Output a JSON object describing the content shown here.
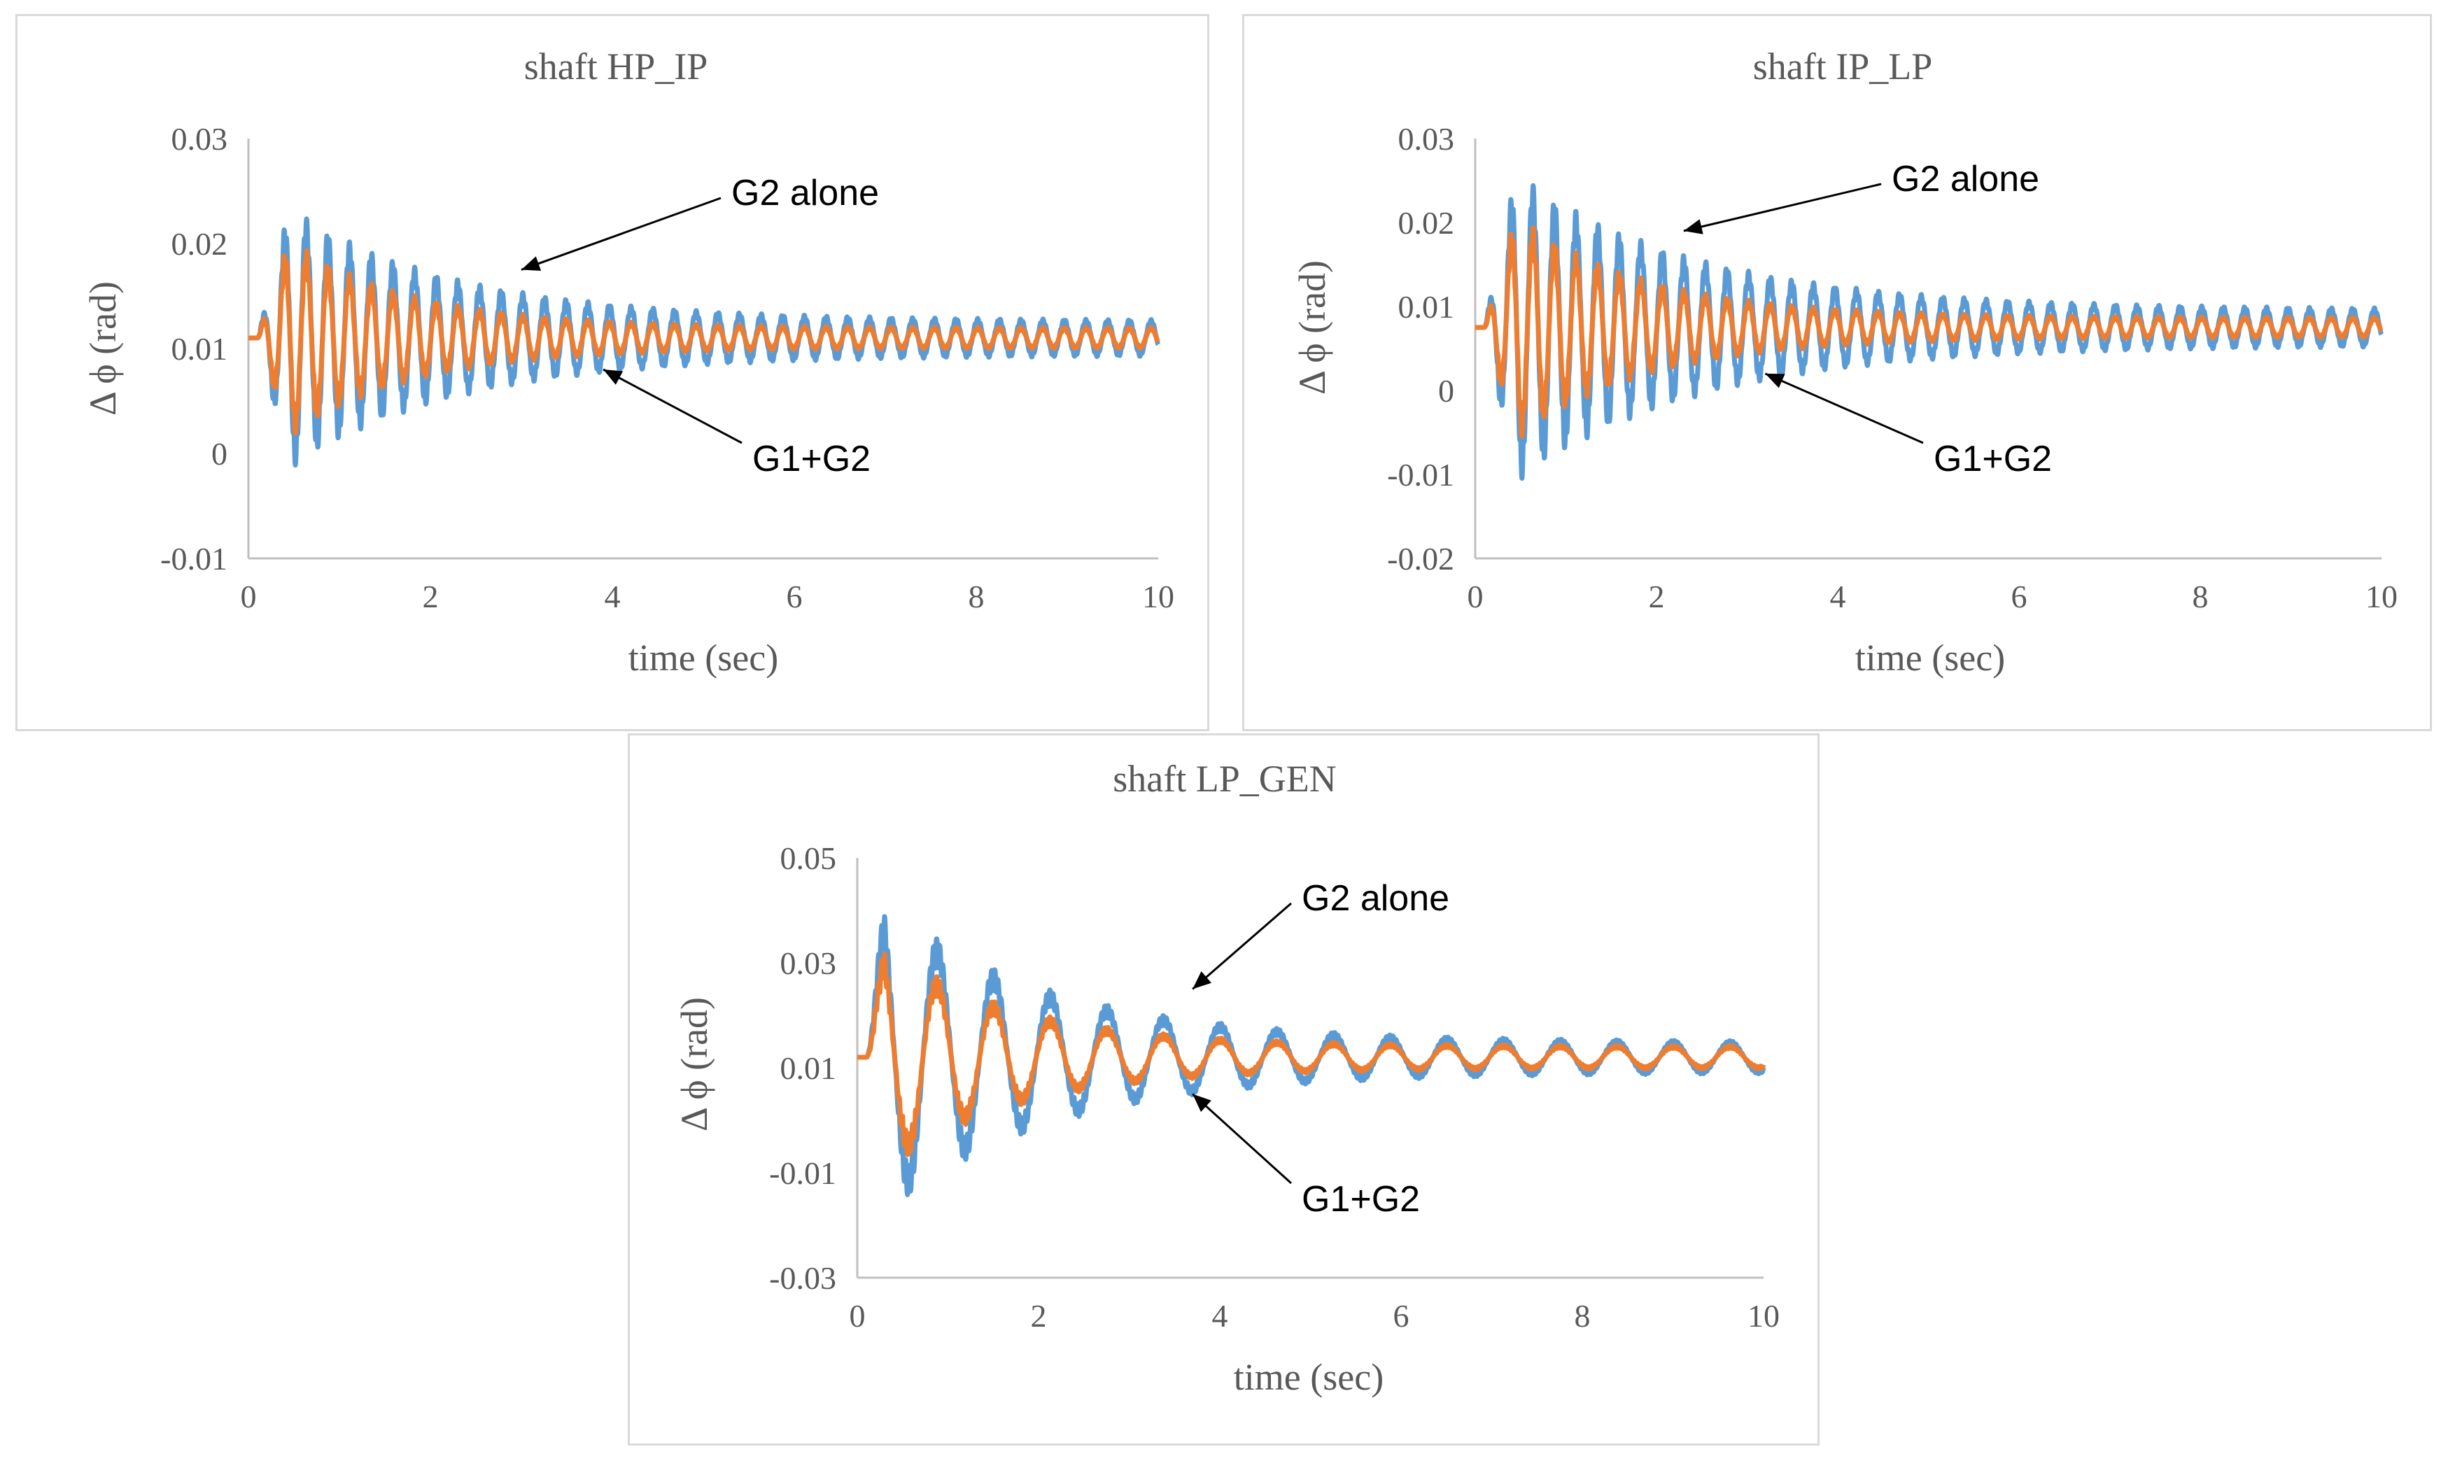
{
  "colors": {
    "g2_alone": "#5b9bd5",
    "g1_g2": "#ed7d31",
    "axis": "#bfbfbf",
    "text": "#595959",
    "annotation_text": "#000000"
  },
  "chart_data": [
    {
      "type": "line",
      "title": "shaft HP_IP",
      "xlabel": "time (sec)",
      "ylabel": "Δ ϕ (rad)",
      "xlim": [
        0,
        10
      ],
      "ylim": [
        -0.01,
        0.03
      ],
      "xticks": [
        "0",
        "2",
        "4",
        "6",
        "8",
        "10"
      ],
      "yticks": [
        "-0.01",
        "0",
        "0.01",
        "0.02",
        "0.03"
      ],
      "grid": false,
      "series": [
        {
          "name": "G2 alone",
          "color": "#5b9bd5",
          "baseline": 0.011,
          "start_time": 0.1,
          "peak_time": 0.45,
          "peak_amplitude": 0.0125,
          "final_amplitude": 0.0017,
          "decay": 0.55,
          "frequency_hz": 4.2,
          "carrier_hz": 16
        },
        {
          "name": "G1+G2",
          "color": "#ed7d31",
          "baseline": 0.011,
          "start_time": 0.1,
          "peak_time": 0.45,
          "peak_amplitude": 0.0095,
          "final_amplitude": 0.001,
          "decay": 0.75,
          "frequency_hz": 4.2,
          "carrier_hz": 16
        }
      ],
      "annotations": [
        {
          "text": "G2 alone",
          "target_series": "G2 alone",
          "target_x": 3.0,
          "target_y": 0.0175
        },
        {
          "text": "G1+G2",
          "target_series": "G1+G2",
          "target_x": 3.9,
          "target_y": 0.008
        }
      ]
    },
    {
      "type": "line",
      "title": "shaft IP_LP",
      "xlabel": "time (sec)",
      "ylabel": "Δ ϕ (rad)",
      "xlim": [
        0,
        10
      ],
      "ylim": [
        -0.02,
        0.03
      ],
      "xticks": [
        "0",
        "2",
        "4",
        "6",
        "8",
        "10"
      ],
      "yticks": [
        "-0.02",
        "-0.01",
        "0",
        "0.01",
        "0.02",
        "0.03"
      ],
      "grid": false,
      "series": [
        {
          "name": "G2 alone",
          "color": "#5b9bd5",
          "baseline": 0.0075,
          "start_time": 0.1,
          "peak_time": 0.45,
          "peak_amplitude": 0.0185,
          "final_amplitude": 0.0022,
          "decay": 0.5,
          "frequency_hz": 4.2,
          "carrier_hz": 16
        },
        {
          "name": "G1+G2",
          "color": "#ed7d31",
          "baseline": 0.0075,
          "start_time": 0.1,
          "peak_time": 0.45,
          "peak_amplitude": 0.0135,
          "final_amplitude": 0.0012,
          "decay": 0.7,
          "frequency_hz": 4.2,
          "carrier_hz": 16
        }
      ],
      "annotations": [
        {
          "text": "G2 alone",
          "target_series": "G2 alone",
          "target_x": 2.3,
          "target_y": 0.019
        },
        {
          "text": "G1+G2",
          "target_series": "G1+G2",
          "target_x": 3.2,
          "target_y": 0.002
        }
      ]
    },
    {
      "type": "line",
      "title": "shaft LP_GEN",
      "xlabel": "time (sec)",
      "ylabel": "Δ ϕ (rad)",
      "xlim": [
        0,
        10
      ],
      "ylim": [
        -0.03,
        0.05
      ],
      "xticks": [
        "0",
        "2",
        "4",
        "6",
        "8",
        "10"
      ],
      "yticks": [
        "-0.03",
        "-0.01",
        "0.01",
        "0.03",
        "0.05"
      ],
      "grid": false,
      "series": [
        {
          "name": "G2 alone",
          "color": "#5b9bd5",
          "baseline": 0.012,
          "start_time": 0.1,
          "peak_time": 0.3,
          "peak_amplitude": 0.03,
          "final_amplitude": 0.003,
          "decay": 0.55,
          "frequency_hz": 1.6,
          "carrier_hz": 14
        },
        {
          "name": "G1+G2",
          "color": "#ed7d31",
          "baseline": 0.012,
          "start_time": 0.1,
          "peak_time": 0.3,
          "peak_amplitude": 0.022,
          "final_amplitude": 0.0022,
          "decay": 0.7,
          "frequency_hz": 1.6,
          "carrier_hz": 14
        }
      ],
      "annotations": [
        {
          "text": "G2 alone",
          "target_series": "G2 alone",
          "target_x": 3.7,
          "target_y": 0.025
        },
        {
          "text": "G1+G2",
          "target_series": "G1+G2",
          "target_x": 3.7,
          "target_y": 0.005
        }
      ]
    }
  ]
}
